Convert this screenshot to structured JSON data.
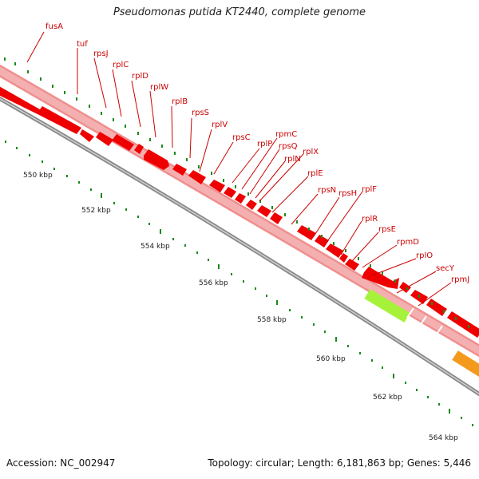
{
  "title": "Pseudomonas putida KT2440, complete genome",
  "footer": {
    "accession": "Accession: NC_002947",
    "summary": "Topology: circular; Length: 6,181,863 bp; Genes: 5,446"
  },
  "colors": {
    "gene_outline": "#f08e8e",
    "gene_fill": "#f4a3a3",
    "cds_fill": "#ee0000",
    "highlight_green": "#a6f23a",
    "highlight_orange": "#f39a1c",
    "label": "#cc0000",
    "tick": "#1a8a1a",
    "backbone": "#888888"
  },
  "scale_labels": [
    "550 kbp",
    "552 kbp",
    "554 kbp",
    "556 kbp",
    "558 kbp",
    "560 kbp",
    "562 kbp",
    "564 kbp"
  ],
  "gene_labels": [
    "fusA",
    "tuf",
    "rpsJ",
    "rplC",
    "rplD",
    "rplW",
    "rplB",
    "rpsS",
    "rplV",
    "rpsC",
    "rplP",
    "rpmC",
    "rpsQ",
    "rplX",
    "rplN",
    "rplE",
    "rpsN",
    "rpsH",
    "rplF",
    "rplR",
    "rpsE",
    "rpmD",
    "rplO",
    "secY",
    "rpmJ"
  ]
}
